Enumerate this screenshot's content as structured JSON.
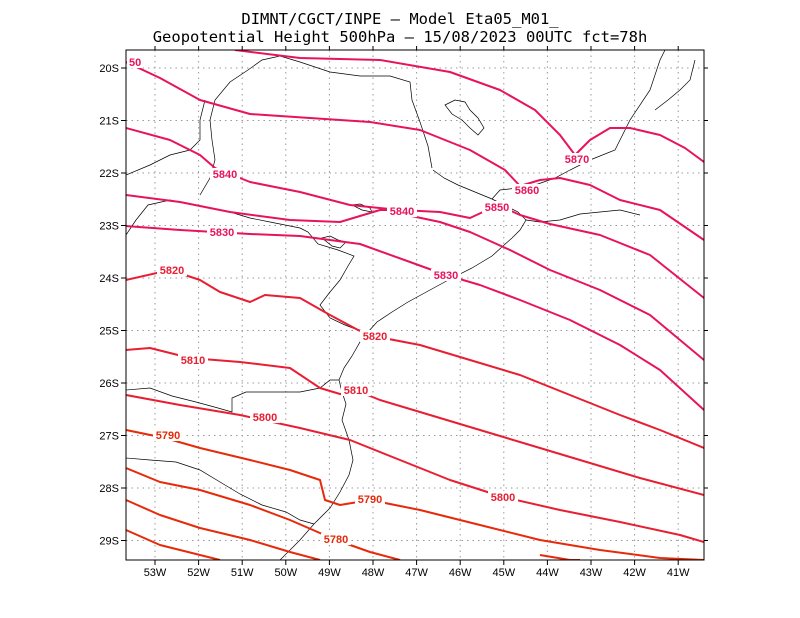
{
  "title": {
    "line1": "DIMNT/CGCT/INPE –  Model Eta05_M01_",
    "line2": "Geopotential Height 500hPa –  15/08/2023 00UTC fct=78h"
  },
  "axes": {
    "lon_ticks": [
      "53W",
      "52W",
      "51W",
      "50W",
      "49W",
      "48W",
      "47W",
      "46W",
      "45W",
      "44W",
      "43W",
      "42W",
      "41W"
    ],
    "lat_ticks": [
      "20S",
      "21S",
      "22S",
      "23S",
      "24S",
      "25S",
      "26S",
      "27S",
      "28S",
      "29S"
    ]
  },
  "colors": {
    "contour_high": "#e8145a",
    "contour_mid": "#e81e32",
    "contour_low": "#e62a0a",
    "coast": "#000000",
    "grid": "#999999"
  },
  "contours": [
    {
      "value": 5780,
      "label": "5780",
      "color": "#e62a0a"
    },
    {
      "value": 5790,
      "label": "5790",
      "color": "#e62a0a"
    },
    {
      "value": 5800,
      "label": "5800",
      "color": "#e81e32"
    },
    {
      "value": 5810,
      "label": "5810",
      "color": "#e81e32"
    },
    {
      "value": 5820,
      "label": "5820",
      "color": "#e81e32"
    },
    {
      "value": 5830,
      "label": "5830",
      "color": "#e8145a"
    },
    {
      "value": 5840,
      "label": "5840",
      "color": "#e8145a"
    },
    {
      "value": 5850,
      "label": "5850",
      "color": "#e8145a"
    },
    {
      "value": 5860,
      "label": "5860",
      "color": "#e8145a"
    },
    {
      "value": 5870,
      "label": "5870",
      "color": "#e8145a"
    }
  ],
  "partial_label": "50"
}
